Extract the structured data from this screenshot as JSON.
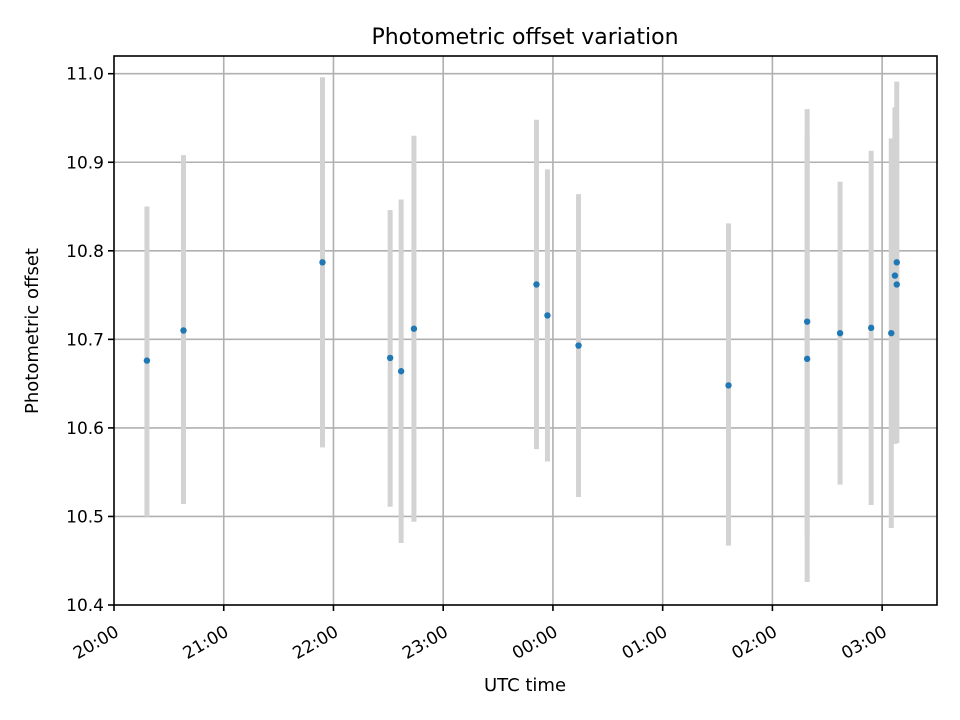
{
  "chart_data": {
    "type": "scatter",
    "title": "Photometric offset variation",
    "xlabel": "UTC time",
    "ylabel": "Photometric offset",
    "ylim": [
      10.4,
      11.02
    ],
    "xlim": [
      "20:00",
      "03:30"
    ],
    "x_tick_labels": [
      "20:00",
      "21:00",
      "22:00",
      "23:00",
      "00:00",
      "01:00",
      "02:00",
      "03:00"
    ],
    "y_tick_labels": [
      "10.4",
      "10.5",
      "10.6",
      "10.7",
      "10.8",
      "10.9",
      "11.0"
    ],
    "grid": true,
    "point_color": "#1f77b4",
    "errorbar_color": "#d3d3d3",
    "points": [
      {
        "time": "20:18",
        "y": 10.676,
        "low": 10.5,
        "high": 10.85
      },
      {
        "time": "20:38",
        "y": 10.71,
        "low": 10.514,
        "high": 10.908
      },
      {
        "time": "21:54",
        "y": 10.787,
        "low": 10.578,
        "high": 10.996
      },
      {
        "time": "22:31",
        "y": 10.679,
        "low": 10.511,
        "high": 10.846
      },
      {
        "time": "22:37",
        "y": 10.664,
        "low": 10.47,
        "high": 10.858
      },
      {
        "time": "22:44",
        "y": 10.712,
        "low": 10.494,
        "high": 10.93
      },
      {
        "time": "23:51",
        "y": 10.762,
        "low": 10.576,
        "high": 10.948
      },
      {
        "time": "23:57",
        "y": 10.727,
        "low": 10.562,
        "high": 10.892
      },
      {
        "time": "00:14",
        "y": 10.693,
        "low": 10.522,
        "high": 10.864
      },
      {
        "time": "01:36",
        "y": 10.648,
        "low": 10.467,
        "high": 10.831
      },
      {
        "time": "02:19",
        "y": 10.72,
        "low": 10.48,
        "high": 10.96
      },
      {
        "time": "02:19",
        "y": 10.678,
        "low": 10.426,
        "high": 10.93
      },
      {
        "time": "02:37",
        "y": 10.707,
        "low": 10.536,
        "high": 10.878
      },
      {
        "time": "02:54",
        "y": 10.713,
        "low": 10.513,
        "high": 10.913
      },
      {
        "time": "03:05",
        "y": 10.707,
        "low": 10.487,
        "high": 10.927
      },
      {
        "time": "03:07",
        "y": 10.772,
        "low": 10.582,
        "high": 10.962
      },
      {
        "time": "03:08",
        "y": 10.762,
        "low": 10.584,
        "high": 10.94
      },
      {
        "time": "03:08",
        "y": 10.787,
        "low": 10.583,
        "high": 10.991
      }
    ]
  }
}
